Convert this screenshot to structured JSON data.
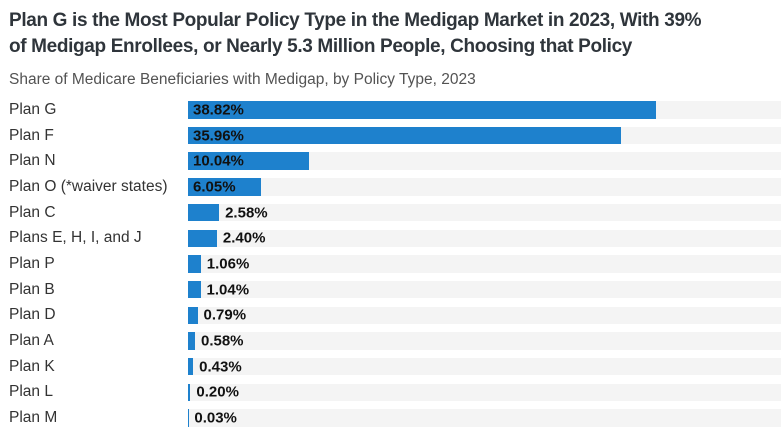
{
  "header": {
    "title_lines": [
      "Plan G is the Most Popular Policy Type in the Medigap Market in 2023, With 39%",
      "of Medigap Enrollees, or Nearly 5.3 Million People, Choosing that Policy"
    ],
    "subtitle": "Share of Medicare Beneficiaries with Medigap, by Policy Type, 2023"
  },
  "colors": {
    "bar": "#1e81cd",
    "bar_track": "#f4f4f4",
    "title_text": "#2f353b",
    "subtitle_text": "#535353",
    "category_text": "#333333",
    "value_text": "#111111"
  },
  "chart_data": {
    "type": "bar",
    "orientation": "horizontal",
    "title": "Plan G is the Most Popular Policy Type in the Medigap Market in 2023, With 39% of Medigap Enrollees, or Nearly 5.3 Million People, Choosing that Policy",
    "subtitle": "Share of Medicare Beneficiaries with Medigap, by Policy Type, 2023",
    "categories": [
      "Plan G",
      "Plan F",
      "Plan N",
      "Plan O (*waiver states)",
      "Plan C",
      "Plans E, H, I, and J",
      "Plan P",
      "Plan B",
      "Plan D",
      "Plan A",
      "Plan K",
      "Plan L",
      "Plan M"
    ],
    "values": [
      38.82,
      35.96,
      10.04,
      6.05,
      2.58,
      2.4,
      1.06,
      1.04,
      0.79,
      0.58,
      0.43,
      0.2,
      0.03
    ],
    "value_labels": [
      "38.82%",
      "35.96%",
      "10.04%",
      "6.05%",
      "2.58%",
      "2.40%",
      "1.06%",
      "1.04%",
      "0.79%",
      "0.58%",
      "0.43%",
      "0.20%",
      "0.03%"
    ],
    "unit": "%",
    "xlabel": "",
    "ylabel": "",
    "xlim": [
      0,
      49.2
    ],
    "grid": false,
    "legend": false,
    "value_label_inside_threshold": 5
  }
}
